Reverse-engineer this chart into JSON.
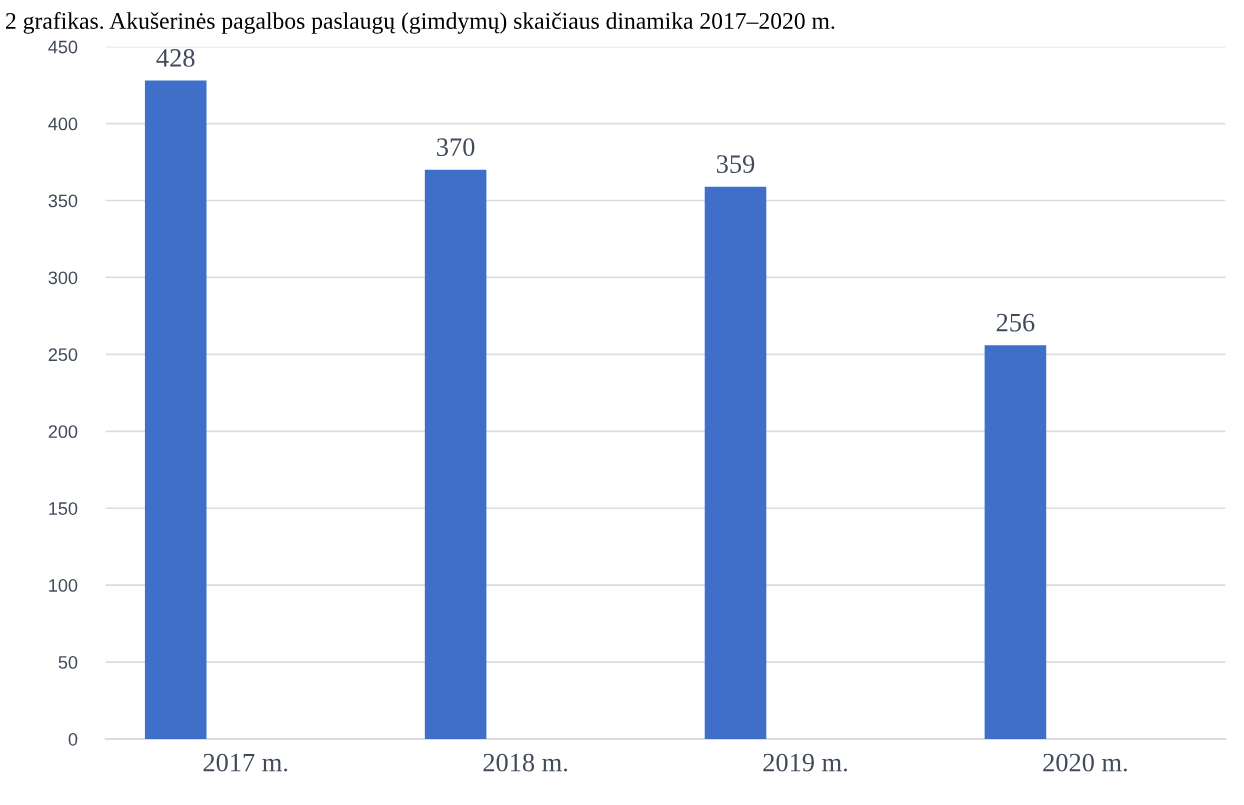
{
  "chart_data": {
    "type": "bar",
    "title": "2 grafikas. Akušerinės pagalbos paslaugų (gimdymų) skaičiaus dinamika 2017–2020 m.",
    "categories": [
      "2017 m.",
      "2018 m.",
      "2019 m.",
      "2020 m."
    ],
    "values": [
      428,
      370,
      359,
      256
    ],
    "color": "#3f6fc9",
    "data_labels": true,
    "ylim": [
      0,
      450
    ],
    "yticks": [
      0,
      50,
      100,
      150,
      200,
      250,
      300,
      350,
      400,
      450
    ],
    "grid": "y",
    "legend": false
  }
}
